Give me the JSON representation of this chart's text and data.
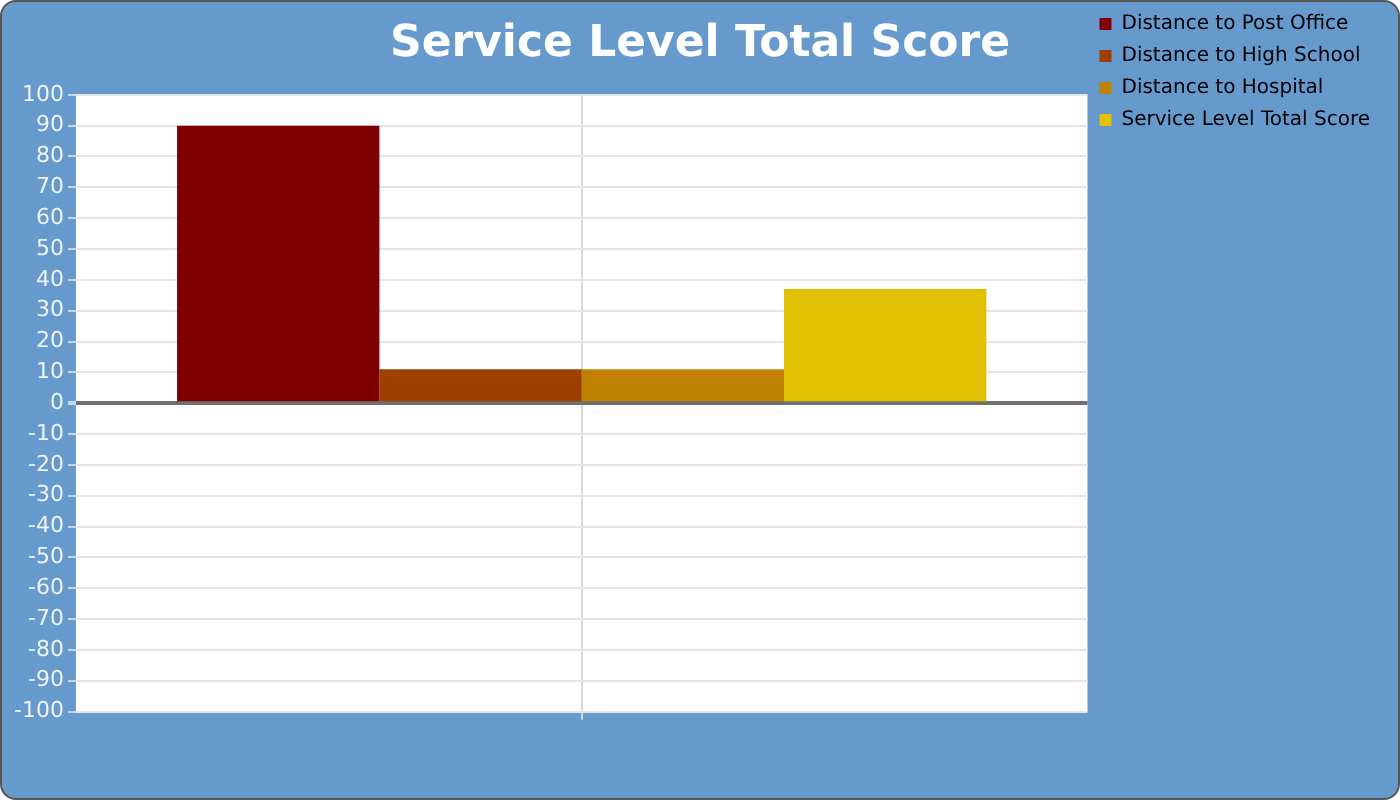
{
  "chart_data": {
    "type": "bar",
    "title": "Service Level Total Score",
    "categories": [
      null
    ],
    "series": [
      {
        "name": "Distance to Post Office",
        "color": "#800000",
        "values": [
          90
        ]
      },
      {
        "name": "Distance to High School",
        "color": "#a04000",
        "values": [
          11
        ]
      },
      {
        "name": "Distance to Hospital",
        "color": "#c08000",
        "values": [
          11
        ]
      },
      {
        "name": "Service Level Total Score",
        "color": "#e0c000",
        "values": [
          37
        ]
      }
    ],
    "ylim": [
      -100,
      100
    ],
    "yticks": [
      -100,
      -90,
      -80,
      -70,
      -60,
      -50,
      -40,
      -30,
      -20,
      -10,
      0,
      10,
      20,
      30,
      40,
      50,
      60,
      70,
      80,
      90,
      100
    ],
    "grid": true,
    "legend": "top right"
  }
}
